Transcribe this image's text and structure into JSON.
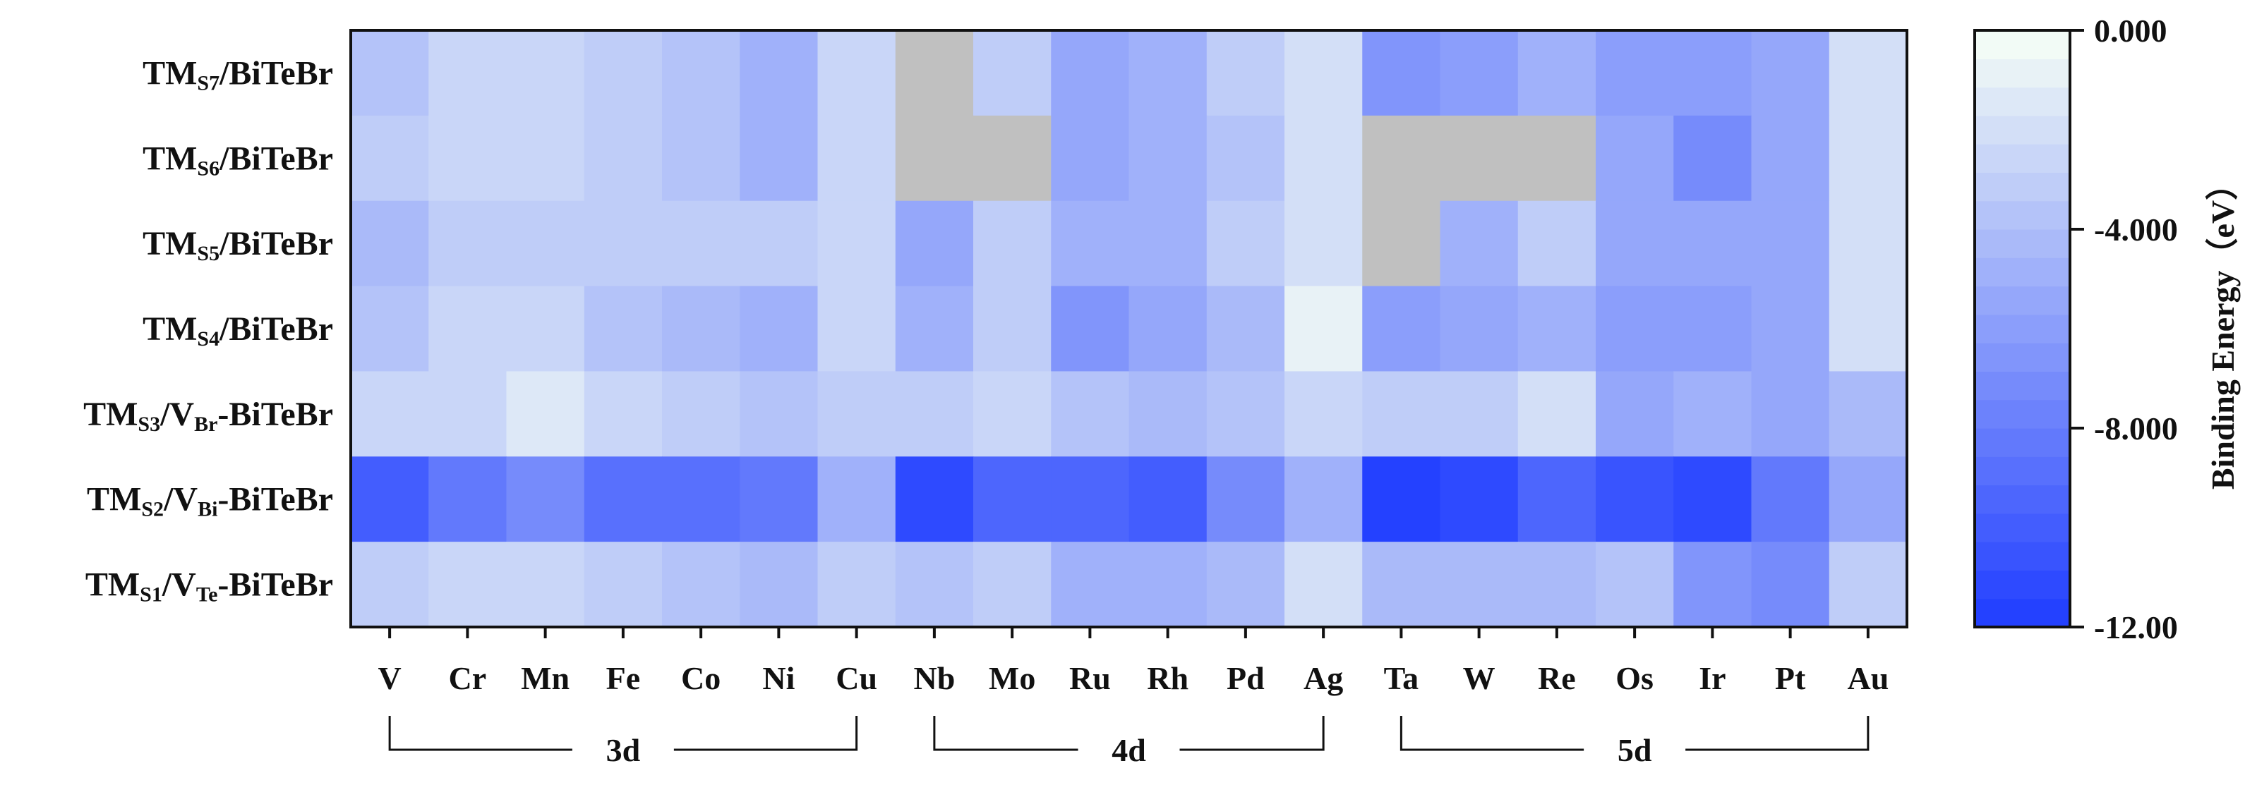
{
  "chart_data": {
    "type": "heatmap",
    "title": "",
    "xlabel": "",
    "ylabel": "",
    "x_categories": [
      "V",
      "Cr",
      "Mn",
      "Fe",
      "Co",
      "Ni",
      "Cu",
      "Nb",
      "Mo",
      "Ru",
      "Rh",
      "Pd",
      "Ag",
      "Ta",
      "W",
      "Re",
      "Os",
      "Ir",
      "Pt",
      "Au"
    ],
    "y_categories": [
      {
        "id": "S7",
        "base": "TM",
        "sub": "S7",
        "mid": "",
        "sub2": "",
        "suffix": "/BiTeBr"
      },
      {
        "id": "S6",
        "base": "TM",
        "sub": "S6",
        "mid": "",
        "sub2": "",
        "suffix": "/BiTeBr"
      },
      {
        "id": "S5",
        "base": "TM",
        "sub": "S5",
        "mid": "",
        "sub2": "",
        "suffix": "/BiTeBr"
      },
      {
        "id": "S4",
        "base": "TM",
        "sub": "S4",
        "mid": "",
        "sub2": "",
        "suffix": "/BiTeBr"
      },
      {
        "id": "S3",
        "base": "TM",
        "sub": "S3",
        "mid": "/V",
        "sub2": "Br",
        "suffix": "-BiTeBr"
      },
      {
        "id": "S2",
        "base": "TM",
        "sub": "S2",
        "mid": "/V",
        "sub2": "Bi",
        "suffix": "-BiTeBr"
      },
      {
        "id": "S1",
        "base": "TM",
        "sub": "S1",
        "mid": "/V",
        "sub2": "Te",
        "suffix": "-BiTeBr"
      }
    ],
    "values": [
      [
        -4.0,
        -2.8,
        -2.8,
        -3.0,
        -3.6,
        -4.6,
        -2.4,
        null,
        -3.0,
        -5.4,
        -4.8,
        -2.9,
        -1.8,
        -6.6,
        -6.0,
        -4.6,
        -5.9,
        -5.9,
        -5.2,
        -2.2
      ],
      [
        -3.4,
        -2.8,
        -2.8,
        -3.2,
        -3.8,
        -4.6,
        -2.4,
        null,
        null,
        -5.4,
        -4.8,
        -4.0,
        -2.0,
        null,
        null,
        null,
        -5.2,
        -6.9,
        -5.6,
        -2.2
      ],
      [
        -4.4,
        -3.3,
        -3.3,
        -3.4,
        -3.4,
        -3.4,
        -2.4,
        -5.3,
        -3.0,
        -4.7,
        -4.6,
        -3.0,
        -2.0,
        null,
        -4.6,
        -3.2,
        -5.3,
        -5.3,
        -5.2,
        -2.2
      ],
      [
        -4.0,
        -2.6,
        -2.6,
        -4.0,
        -4.5,
        -4.6,
        -2.3,
        -5.0,
        -3.3,
        -6.3,
        -5.4,
        -4.1,
        -0.9,
        -6.2,
        -5.5,
        -4.6,
        -6.1,
        -6.1,
        -5.6,
        -2.2
      ],
      [
        -2.7,
        -2.7,
        -1.7,
        -2.4,
        -3.0,
        -3.7,
        -3.0,
        -3.0,
        -2.6,
        -3.6,
        -4.2,
        -3.8,
        -2.6,
        -3.1,
        -3.1,
        -2.1,
        -5.5,
        -4.6,
        -5.2,
        -4.1
      ],
      [
        -10.0,
        -8.4,
        -7.4,
        -8.7,
        -8.7,
        -8.4,
        -5.0,
        -11.2,
        -9.3,
        -9.6,
        -9.9,
        -7.0,
        -4.8,
        -11.6,
        -11.0,
        -9.6,
        -10.6,
        -11.2,
        -8.3,
        -5.2
      ],
      [
        -3.3,
        -2.7,
        -2.7,
        -3.0,
        -3.6,
        -4.3,
        -3.0,
        -4.0,
        -3.0,
        -5.1,
        -5.1,
        -4.1,
        -1.8,
        -4.1,
        -4.1,
        -4.1,
        -3.6,
        -6.4,
        -7.0,
        -3.0
      ]
    ],
    "missing_color": "#c0c0c0",
    "color_scale": {
      "min": -12.0,
      "max": 0.0,
      "levels": 21,
      "low_color": "#2441ff",
      "high_color": "#f2fbf6"
    },
    "colorbar": {
      "ticks": [
        0.0,
        -4.0,
        -8.0,
        -12.0
      ],
      "tick_labels": [
        "0.000",
        "-4.000",
        "-8.000",
        "-12.00"
      ],
      "label": "Binding Energy（eV）"
    },
    "groups": [
      {
        "label": "3d",
        "from": 0,
        "to": 6
      },
      {
        "label": "4d",
        "from": 7,
        "to": 12
      },
      {
        "label": "5d",
        "from": 13,
        "to": 19
      }
    ]
  }
}
